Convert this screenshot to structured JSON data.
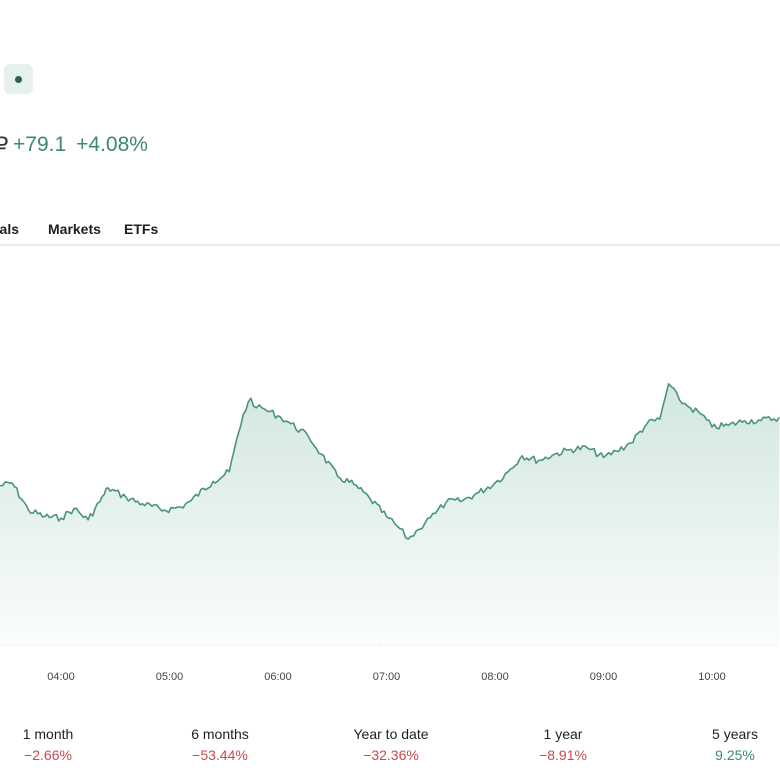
{
  "colors": {
    "positive": "#3b8a6c",
    "negative": "#c94a50",
    "line": "#4a9478",
    "fill_top": "#cfe6dc",
    "chip_bg": "#e6f0ec"
  },
  "header": {
    "status_icon": "live-dot-icon",
    "currency_glyph": "₽",
    "change_abs": "+79.1",
    "change_pct": "+4.08%"
  },
  "tabs": [
    {
      "label": "nals"
    },
    {
      "label": "Markets"
    },
    {
      "label": "ETFs"
    }
  ],
  "chart_data": {
    "type": "area",
    "x_ticks": [
      "04:00",
      "05:00",
      "06:00",
      "07:00",
      "08:00",
      "09:00",
      "10:00"
    ],
    "x_hours": [
      3.42,
      3.55,
      3.7,
      3.85,
      4.0,
      4.12,
      4.25,
      4.4,
      4.43,
      4.6,
      4.75,
      4.95,
      5.1,
      5.2,
      5.4,
      5.55,
      5.68,
      5.75,
      5.8,
      5.88,
      6.0,
      6.12,
      6.28,
      6.4,
      6.55,
      6.7,
      6.85,
      7.0,
      7.1,
      7.2,
      7.3,
      7.38,
      7.45,
      7.55,
      7.7,
      7.85,
      8.0,
      8.12,
      8.25,
      8.4,
      8.55,
      8.7,
      8.85,
      9.0,
      9.12,
      9.25,
      9.4,
      9.52,
      9.6,
      9.7,
      9.8,
      9.9,
      10.0,
      10.15,
      10.3,
      10.45,
      10.62
    ],
    "values": [
      0.53,
      0.55,
      0.38,
      0.34,
      0.33,
      0.39,
      0.32,
      0.48,
      0.52,
      0.46,
      0.42,
      0.38,
      0.4,
      0.44,
      0.56,
      0.62,
      0.98,
      1.08,
      1.02,
      1.01,
      0.97,
      0.92,
      0.84,
      0.73,
      0.59,
      0.54,
      0.45,
      0.34,
      0.28,
      0.2,
      0.26,
      0.33,
      0.36,
      0.43,
      0.44,
      0.49,
      0.55,
      0.62,
      0.72,
      0.69,
      0.73,
      0.76,
      0.77,
      0.71,
      0.75,
      0.8,
      0.92,
      0.95,
      1.17,
      1.07,
      1.02,
      0.98,
      0.9,
      0.91,
      0.94,
      0.94,
      0.96
    ]
  },
  "returns": [
    {
      "label": "1 month",
      "value": "−2.66%",
      "sign": "neg"
    },
    {
      "label": "6 months",
      "value": "−53.44%",
      "sign": "neg"
    },
    {
      "label": "Year to date",
      "value": "−32.36%",
      "sign": "neg"
    },
    {
      "label": "1 year",
      "value": "−8.91%",
      "sign": "neg"
    },
    {
      "label": "5 years",
      "value": "9.25%",
      "sign": "pos"
    }
  ]
}
